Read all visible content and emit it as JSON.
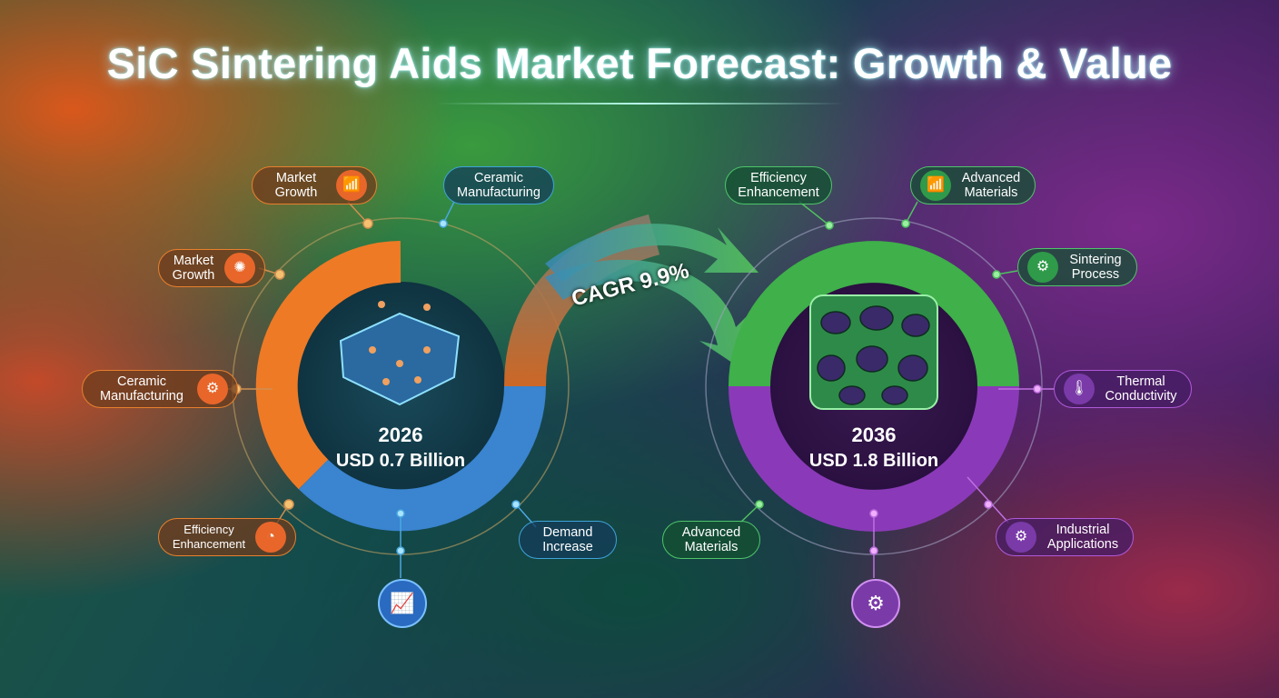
{
  "title": "SiC Sintering Aids Market Forecast: Growth & Value",
  "cagr_label": "CAGR 9.9%",
  "start": {
    "year": "2026",
    "value": "USD 0.7 Billion"
  },
  "end": {
    "year": "2036",
    "value": "USD 1.8 Billion"
  },
  "left_labels": [
    {
      "text": "Market Growth",
      "icon": "bar-chart-up-icon"
    },
    {
      "text": "Ceramic Manufacturing",
      "icon": ""
    },
    {
      "text": "Market Growth",
      "icon": "particles-icon"
    },
    {
      "text": "Ceramic Manufacturing",
      "icon": "gear-hand-icon"
    },
    {
      "text": "Efficiency Enhancement",
      "icon": "gauge-icon"
    },
    {
      "text": "Demand Increase",
      "icon": ""
    }
  ],
  "right_labels": [
    {
      "text": "Efficiency Enhancement",
      "icon": ""
    },
    {
      "text": "Advanced Materials",
      "icon": "bar-chart-up-icon"
    },
    {
      "text": "Sintering Process",
      "icon": "gear-icon"
    },
    {
      "text": "Thermal Conductivity",
      "icon": "thermometer-icon"
    },
    {
      "text": "Industrial Applications",
      "icon": "gear-hand-icon"
    },
    {
      "text": "Advanced Materials",
      "icon": ""
    }
  ],
  "colors": {
    "orange": "#e8802e",
    "blue": "#3ea4d8",
    "green": "#4fc46a",
    "purple": "#b05ad8"
  }
}
